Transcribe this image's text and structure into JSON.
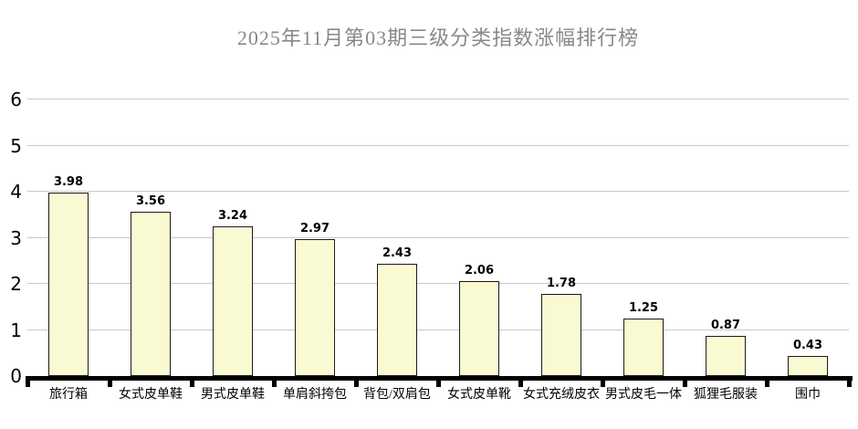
{
  "chart_data": {
    "type": "bar",
    "title": "2025年11月第03期三级分类指数涨幅排行榜",
    "categories": [
      "旅行箱",
      "女式皮单鞋",
      "男式皮单鞋",
      "单肩斜挎包",
      "背包/双肩包",
      "女式皮单靴",
      "女式充绒皮衣",
      "男式皮毛一体",
      "狐狸毛服装",
      "围巾"
    ],
    "values": [
      3.98,
      3.56,
      3.24,
      2.97,
      2.43,
      2.06,
      1.78,
      1.25,
      0.87,
      0.43
    ],
    "xlabel": "",
    "ylabel": "",
    "ylim": [
      0,
      6
    ],
    "yticks": [
      0,
      1,
      2,
      3,
      4,
      5,
      6
    ],
    "grid": true,
    "legend_position": "none",
    "colors": {
      "bar_fill": "#fafad2",
      "bar_border": "#1a1a1a",
      "gridline": "#c8c8c8",
      "axis": "#000000",
      "title_text": "#888888",
      "label_text": "#000000",
      "background": "#ffffff"
    }
  }
}
